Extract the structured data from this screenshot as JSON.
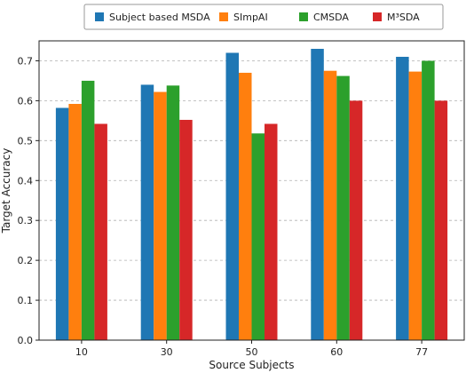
{
  "chart_data": {
    "type": "bar",
    "xlabel": "Source Subjects",
    "ylabel": "Target Accuracy",
    "categories": [
      "10",
      "30",
      "50",
      "60",
      "77"
    ],
    "ylim": [
      0,
      0.75
    ],
    "yticks": [
      0.0,
      0.1,
      0.2,
      0.3,
      0.4,
      0.5,
      0.6,
      0.7
    ],
    "ytick_labels": [
      "0.0",
      "0.1",
      "0.2",
      "0.3",
      "0.4",
      "0.5",
      "0.6",
      "0.7"
    ],
    "grid": true,
    "legend_position": "top-center",
    "series": [
      {
        "name": "Subject based MSDA",
        "color": "#1f77b4",
        "values": [
          0.582,
          0.64,
          0.72,
          0.73,
          0.71
        ]
      },
      {
        "name": "SImpAI",
        "color": "#ff7f0e",
        "values": [
          0.592,
          0.622,
          0.67,
          0.675,
          0.673
        ]
      },
      {
        "name": "CMSDA",
        "color": "#2ca02c",
        "values": [
          0.65,
          0.638,
          0.518,
          0.662,
          0.7
        ]
      },
      {
        "name": "M³SDA",
        "color": "#d62728",
        "values": [
          0.542,
          0.552,
          0.542,
          0.6,
          0.6
        ]
      }
    ]
  }
}
